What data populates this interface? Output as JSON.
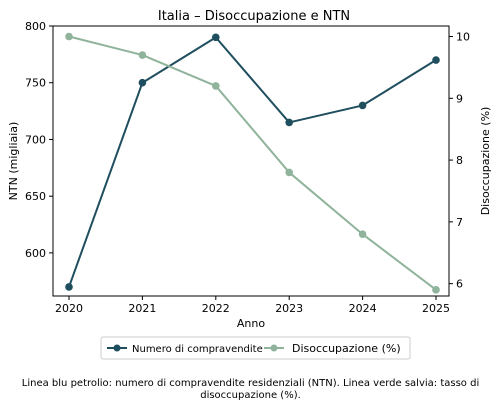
{
  "chart_data": {
    "type": "line",
    "title": "Italia – Disoccupazione e NTN",
    "xlabel": "Anno",
    "ylabel_left": "NTN (migliaia)",
    "ylabel_right": "Disoccupazione (%)",
    "categories": [
      "2020",
      "2021",
      "2022",
      "2023",
      "2024",
      "2025"
    ],
    "y_left_ticks": [
      "600",
      "650",
      "700",
      "750",
      "800"
    ],
    "y_right_ticks": [
      "6",
      "7",
      "8",
      "9",
      "10"
    ],
    "ylim_left": [
      562,
      800
    ],
    "ylim_right": [
      5.8,
      10.17
    ],
    "grid": false,
    "legend_position": "bottom-center",
    "series": [
      {
        "name": "Numero di compravendite",
        "axis": "left",
        "color": "#1f4e5f",
        "values": [
          570,
          750,
          790,
          715,
          730,
          770
        ]
      },
      {
        "name": "Disoccupazione (%)",
        "axis": "right",
        "color": "#8fb39b",
        "values": [
          10.0,
          9.7,
          9.2,
          7.8,
          6.8,
          5.9
        ]
      }
    ]
  },
  "caption": "Linea blu petrolio: numero di compravendite residenziali (NTN). Linea verde salvia: tasso di disoccupazione (%)."
}
